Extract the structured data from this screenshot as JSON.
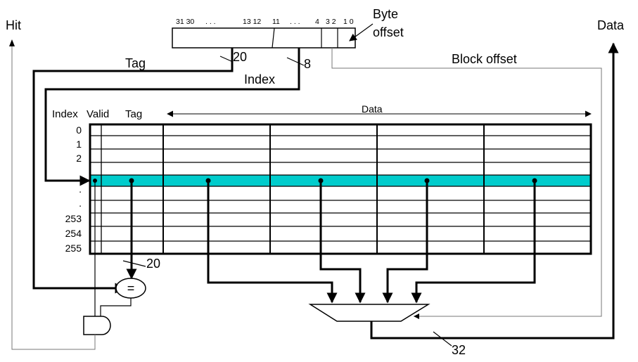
{
  "hit_label": "Hit",
  "data_label": "Data",
  "address": {
    "bit_labels": [
      "31 30",
      ". . .",
      "13 12",
      "11",
      ". . .",
      "4",
      "3 2",
      "1 0"
    ],
    "byte_offset_line1": "Byte",
    "byte_offset_line2": "offset",
    "tag_label": "Tag",
    "tag_width": "20",
    "index_label": "Index",
    "index_width": "8",
    "block_offset_label": "Block offset"
  },
  "cache": {
    "col_index": "Index",
    "col_valid": "Valid",
    "col_tag": "Tag",
    "col_data": "Data",
    "row_indices": [
      "0",
      "1",
      "2",
      ".",
      ".",
      "253",
      "254",
      "255"
    ],
    "highlight_color": "#00CCCC"
  },
  "comparator": {
    "symbol": "=",
    "tag_width": "20"
  },
  "mux": {
    "output_width": "32"
  }
}
